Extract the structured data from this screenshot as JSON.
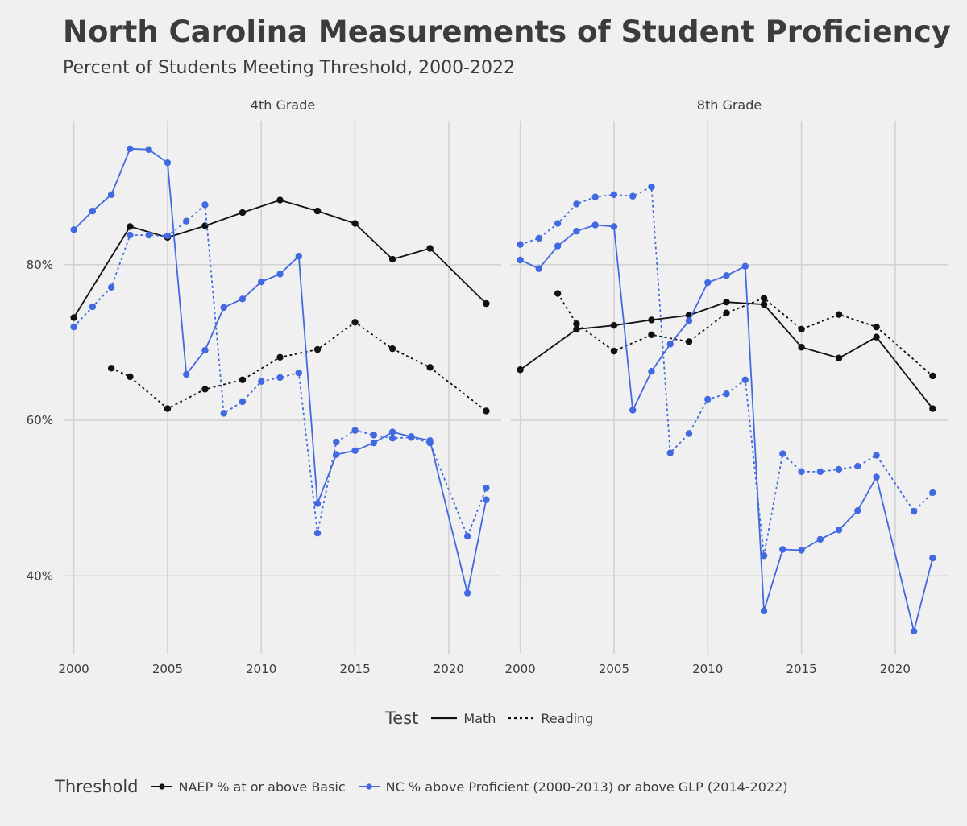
{
  "title": "North Carolina Measurements of Student Proficiency",
  "subtitle": "Percent of Students Meeting Threshold, 2000-2022",
  "colors": {
    "naep": "#111111",
    "nc": "#4169e1",
    "grid": "#d2d2d2",
    "background": "#f0f0f0"
  },
  "chart_data": {
    "type": "line",
    "facets": [
      "4th Grade",
      "8th Grade"
    ],
    "x_ticks": [
      2000,
      2005,
      2010,
      2015,
      2020
    ],
    "x_tick_labels": [
      "2000",
      "2005",
      "2010",
      "2015",
      "2020"
    ],
    "y_ticks": [
      40,
      60,
      80
    ],
    "y_tick_labels": [
      "40%",
      "60%",
      "80%"
    ],
    "xlim": [
      1999.5,
      2022.8
    ],
    "ylim": [
      30,
      98.5
    ],
    "panels": [
      {
        "facet": "4th Grade",
        "series": [
          {
            "name": "NAEP Math",
            "threshold": "NAEP % at or above Basic",
            "test": "Math",
            "x": [
              2000,
              2003,
              2005,
              2007,
              2009,
              2011,
              2013,
              2015,
              2017,
              2019,
              2022
            ],
            "y": [
              73.2,
              84.9,
              83.5,
              85.0,
              86.7,
              88.3,
              86.9,
              85.3,
              80.7,
              82.1,
              75.0
            ]
          },
          {
            "name": "NAEP Reading",
            "threshold": "NAEP % at or above Basic",
            "test": "Reading",
            "x": [
              2002,
              2003,
              2005,
              2007,
              2009,
              2011,
              2013,
              2015,
              2017,
              2019,
              2022
            ],
            "y": [
              66.7,
              65.6,
              61.5,
              64.0,
              65.2,
              68.1,
              69.1,
              72.6,
              69.2,
              66.8,
              61.2
            ]
          },
          {
            "name": "NC Math",
            "threshold": "NC % above Proficient (2000-2013) or above GLP (2014-2022)",
            "test": "Math",
            "x": [
              2000,
              2001,
              2002,
              2003,
              2004,
              2005,
              2006,
              2007,
              2008,
              2009,
              2010,
              2011,
              2012,
              2013,
              2014,
              2015,
              2016,
              2017,
              2018,
              2019,
              2021,
              2022
            ],
            "y": [
              84.5,
              86.9,
              89.0,
              94.9,
              94.8,
              93.1,
              65.9,
              69.0,
              74.5,
              75.6,
              77.8,
              78.8,
              81.1,
              49.3,
              55.6,
              56.1,
              57.1,
              58.5,
              57.9,
              57.4,
              37.8,
              49.8
            ]
          },
          {
            "name": "NC Reading",
            "threshold": "NC % above Proficient (2000-2013) or above GLP (2014-2022)",
            "test": "Reading",
            "x": [
              2000,
              2001,
              2002,
              2003,
              2004,
              2005,
              2006,
              2007,
              2008,
              2009,
              2010,
              2011,
              2012,
              2013,
              2014,
              2015,
              2016,
              2017,
              2018,
              2019,
              2021,
              2022
            ],
            "y": [
              72.0,
              74.6,
              77.1,
              83.8,
              83.8,
              83.7,
              85.6,
              87.7,
              60.9,
              62.4,
              65.0,
              65.5,
              66.1,
              45.5,
              57.2,
              58.7,
              58.1,
              57.7,
              57.8,
              57.1,
              45.1,
              51.3
            ]
          }
        ]
      },
      {
        "facet": "8th Grade",
        "series": [
          {
            "name": "NAEP Math",
            "threshold": "NAEP % at or above Basic",
            "test": "Math",
            "x": [
              2000,
              2003,
              2005,
              2007,
              2009,
              2011,
              2013,
              2015,
              2017,
              2019,
              2022
            ],
            "y": [
              66.5,
              71.7,
              72.2,
              72.9,
              73.5,
              75.2,
              74.9,
              69.4,
              68.0,
              70.7,
              61.5
            ]
          },
          {
            "name": "NAEP Reading",
            "threshold": "NAEP % at or above Basic",
            "test": "Reading",
            "x": [
              2002,
              2003,
              2005,
              2007,
              2009,
              2011,
              2013,
              2015,
              2017,
              2019,
              2022
            ],
            "y": [
              76.3,
              72.4,
              68.9,
              71.0,
              70.1,
              73.8,
              75.7,
              71.7,
              73.6,
              72.0,
              65.7
            ]
          },
          {
            "name": "NC Math",
            "threshold": "NC % above Proficient (2000-2013) or above GLP (2014-2022)",
            "test": "Math",
            "x": [
              2000,
              2001,
              2002,
              2003,
              2004,
              2005,
              2006,
              2007,
              2008,
              2009,
              2010,
              2011,
              2012,
              2013,
              2014,
              2015,
              2016,
              2017,
              2018,
              2019,
              2021,
              2022
            ],
            "y": [
              80.6,
              79.5,
              82.4,
              84.3,
              85.1,
              84.9,
              61.3,
              66.3,
              69.8,
              72.8,
              77.7,
              78.6,
              79.8,
              35.5,
              43.4,
              43.3,
              44.7,
              45.9,
              48.4,
              52.7,
              32.9,
              42.3
            ]
          },
          {
            "name": "NC Reading",
            "threshold": "NC % above Proficient (2000-2013) or above GLP (2014-2022)",
            "test": "Reading",
            "x": [
              2000,
              2001,
              2002,
              2003,
              2004,
              2005,
              2006,
              2007,
              2008,
              2009,
              2010,
              2011,
              2012,
              2013,
              2014,
              2015,
              2016,
              2017,
              2018,
              2019,
              2021,
              2022
            ],
            "y": [
              82.6,
              83.4,
              85.3,
              87.8,
              88.7,
              89.0,
              88.8,
              90.0,
              55.8,
              58.3,
              62.7,
              63.4,
              65.2,
              42.6,
              55.7,
              53.4,
              53.4,
              53.7,
              54.1,
              55.5,
              48.3,
              50.7
            ]
          }
        ]
      }
    ],
    "legend": {
      "test_title": "Test",
      "test_entries": [
        {
          "label": "Math",
          "style": "solid"
        },
        {
          "label": "Reading",
          "style": "dotted"
        }
      ],
      "threshold_title": "Threshold",
      "threshold_entries": [
        {
          "label": "NAEP % at or above Basic",
          "color": "#111111"
        },
        {
          "label": "NC % above Proficient (2000-2013) or above GLP (2014-2022)",
          "color": "#4169e1"
        }
      ],
      "position": "bottom"
    }
  }
}
